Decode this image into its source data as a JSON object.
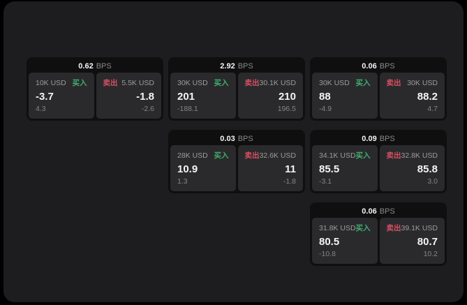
{
  "colors": {
    "outer_background": "#000000",
    "panel_background": "#1d1d1f",
    "card_background": "#0f0f10",
    "subpanel_background": "#2a2a2c",
    "buy_green": "#3fae6e",
    "sell_red": "#d64f63",
    "primary_text": "#f4f4f4",
    "muted_text": "#9c9c9c"
  },
  "cards": [
    {
      "bps_value": "0.62",
      "bps_unit": "BPS",
      "buy": {
        "amount": "10K USD",
        "tag": "买入",
        "value": "-3.7",
        "delta": "4.3"
      },
      "sell": {
        "tag": "卖出",
        "amount": "5.5K USD",
        "value": "-1.8",
        "delta": "-2.6"
      }
    },
    {
      "bps_value": "2.92",
      "bps_unit": "BPS",
      "buy": {
        "amount": "30K USD",
        "tag": "买入",
        "value": "201",
        "delta": "-188.1"
      },
      "sell": {
        "tag": "卖出",
        "amount": "30.1K USD",
        "value": "210",
        "delta": "196.5"
      }
    },
    {
      "bps_value": "0.06",
      "bps_unit": "BPS",
      "buy": {
        "amount": "30K USD",
        "tag": "买入",
        "value": "88",
        "delta": "-4.9"
      },
      "sell": {
        "tag": "卖出",
        "amount": "30K USD",
        "value": "88.2",
        "delta": "4.7"
      }
    },
    {
      "bps_value": "0.03",
      "bps_unit": "BPS",
      "buy": {
        "amount": "28K USD",
        "tag": "买入",
        "value": "10.9",
        "delta": "1.3"
      },
      "sell": {
        "tag": "卖出",
        "amount": "32.6K USD",
        "value": "11",
        "delta": "-1.8"
      }
    },
    {
      "bps_value": "0.09",
      "bps_unit": "BPS",
      "buy": {
        "amount": "34.1K USD",
        "tag": "买入",
        "value": "85.5",
        "delta": "-3.1"
      },
      "sell": {
        "tag": "卖出",
        "amount": "32.8K USD",
        "value": "85.8",
        "delta": "3.0"
      }
    },
    {
      "bps_value": "0.06",
      "bps_unit": "BPS",
      "buy": {
        "amount": "31.8K USD",
        "tag": "买入",
        "value": "80.5",
        "delta": "-10.8"
      },
      "sell": {
        "tag": "卖出",
        "amount": "39.1K USD",
        "value": "80.7",
        "delta": "10.2"
      }
    }
  ]
}
